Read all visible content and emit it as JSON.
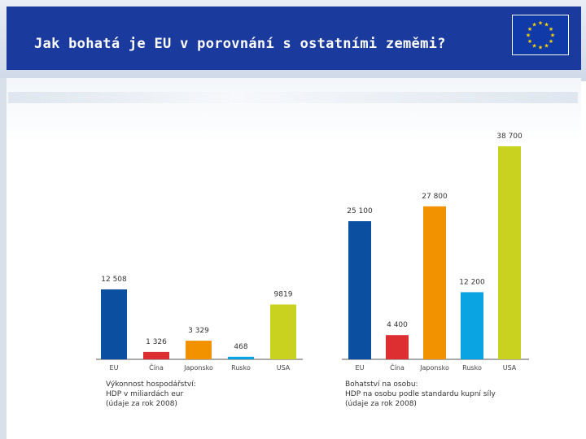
{
  "slide": {
    "title": "Jak bohatá je EU v porovnání s ostatními zeměmi?"
  },
  "chart_data": [
    {
      "type": "bar",
      "categories": [
        "EU",
        "Čína",
        "Japonsko",
        "Rusko",
        "USA"
      ],
      "values": [
        12508,
        1326,
        3329,
        468,
        9819
      ],
      "data_labels": [
        "12 508",
        "1 326",
        "3 329",
        "468",
        "9819"
      ],
      "colors": [
        "#0a4fa0",
        "#dd2e32",
        "#f39200",
        "#0ba4e2",
        "#c8d21f"
      ],
      "caption_lines": [
        "Výkonnost hospodářství:",
        "HDP v miliardách eur",
        "(údaje za rok 2008)"
      ],
      "ylim": [
        0,
        12508
      ]
    },
    {
      "type": "bar",
      "categories": [
        "EU",
        "Čína",
        "Japonsko",
        "Rusko",
        "USA"
      ],
      "values": [
        25100,
        4400,
        27800,
        12200,
        38700
      ],
      "data_labels": [
        "25 100",
        "4 400",
        "27 800",
        "12 200",
        "38 700"
      ],
      "colors": [
        "#0a4fa0",
        "#dd2e32",
        "#f39200",
        "#0ba4e2",
        "#c8d21f"
      ],
      "caption_lines": [
        "Bohatství na osobu:",
        "HDP na osobu podle standardu kupní síly",
        "(údaje za rok 2008)"
      ],
      "ylim": [
        0,
        38700
      ]
    }
  ]
}
